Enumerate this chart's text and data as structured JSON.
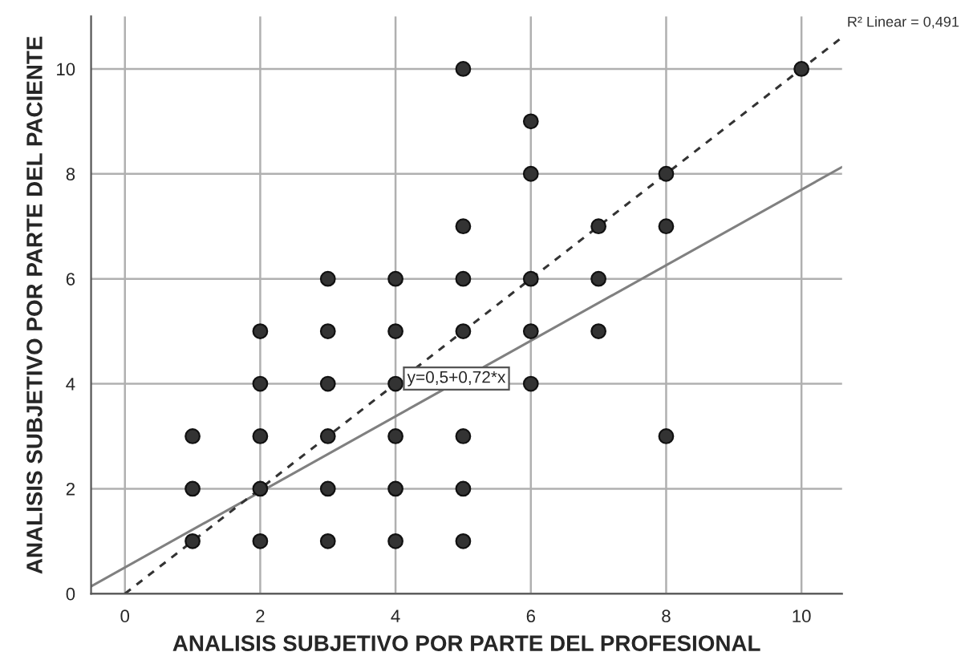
{
  "chart_data": {
    "type": "scatter",
    "xlabel": "ANALISIS SUBJETIVO POR PARTE DEL PROFESIONAL",
    "ylabel": "ANALISIS SUBJETIVO POR PARTE DEL PACIENTE",
    "annotations": [
      {
        "text": "y=0,5+0,72*x",
        "x": 4.9,
        "y": 4.1
      },
      "R² Linear = 0,491"
    ],
    "series": [
      {
        "color": "#333333",
        "marker": "circle",
        "x": [
          1,
          1,
          1,
          2,
          2,
          2,
          2,
          2,
          3,
          3,
          3,
          3,
          3,
          3,
          4,
          4,
          4,
          4,
          4,
          4,
          5,
          5,
          5,
          5,
          5,
          5,
          5,
          6,
          6,
          6,
          6,
          6,
          7,
          7,
          7,
          8,
          8,
          8,
          10
        ],
        "values": [
          1,
          2,
          3,
          1,
          2,
          3,
          4,
          5,
          1,
          2,
          3,
          4,
          5,
          6,
          1,
          2,
          3,
          4,
          5,
          6,
          1,
          2,
          3,
          5,
          6,
          7,
          10,
          4,
          5,
          6,
          8,
          9,
          5,
          6,
          7,
          3,
          7,
          8,
          10
        ]
      },
      {
        "type": "line",
        "color": "#808080",
        "line_style": "solid",
        "marker": "none",
        "x": [
          -0.5,
          10.6
        ],
        "values": [
          0.14,
          8.13
        ]
      },
      {
        "type": "line",
        "color": "#333333",
        "line_style": "dashed",
        "marker": "none",
        "x": [
          0,
          10.6
        ],
        "values": [
          0,
          10.6
        ]
      }
    ],
    "xlim": [
      -0.5,
      10.6
    ],
    "ylim": [
      0,
      11
    ],
    "xticks": [
      0,
      2,
      4,
      6,
      8,
      10
    ],
    "yticks": [
      0,
      2,
      4,
      6,
      8,
      10
    ],
    "grid": true,
    "legend": false
  }
}
